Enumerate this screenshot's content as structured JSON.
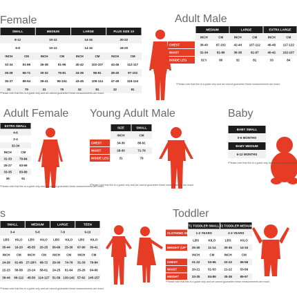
{
  "sections": [
    {
      "title": "Female",
      "note": "*Please note that this is a guide only and we cannot guarantee these measurements are exact.",
      "table": {
        "header": [
          "SMALL",
          "MEDIUM",
          "LARGE",
          "PLUS SIZE 1X"
        ],
        "rows": [
          {
            "cells": [
              "8-12",
              "10-12",
              "14-16",
              "20-22"
            ]
          },
          {
            "cells": [
              "6-8",
              "10-12",
              "14-16",
              "18-20"
            ]
          },
          {
            "cells": [
              "INCH",
              "CM",
              "INCH",
              "CM",
              "INCH",
              "CM",
              "INCH",
              "CM"
            ]
          },
          {
            "cells": [
              "32-34",
              "81-86",
              "36-38",
              "91-96",
              "40-42",
              "102-107",
              "44-46",
              "112-117"
            ]
          },
          {
            "cells": [
              "26-28",
              "66-71",
              "30-32",
              "76-81",
              "34-36",
              "86-91",
              "38-40",
              "97-102"
            ]
          },
          {
            "cells": [
              "35-37",
              "89-94",
              "39-41",
              "99-104",
              "43-45",
              "109-114",
              "47-49",
              "119-124"
            ]
          },
          {
            "cells": [
              "31",
              "79",
              "31",
              "79",
              "32",
              "81",
              "32",
              "81"
            ]
          }
        ]
      }
    },
    {
      "title": "Adult Male",
      "note": "*Please note that this is a guide only and we cannot guarantee these measurements are exact.",
      "table": {
        "header": [
          "MEDIUM",
          "LARGE",
          "EXTRA LARGE"
        ],
        "rows": [
          {
            "cells": [
              "INCH",
              "CM",
              "INCH",
              "CM",
              "INCH",
              "CM"
            ]
          },
          {
            "label": "CHEST",
            "cells": [
              "38-40",
              "97-102",
              "42-44",
              "107-112",
              "46-48",
              "117-122"
            ]
          },
          {
            "label": "WAIST",
            "cells": [
              "32-34",
              "81-86",
              "36-38",
              "91-97",
              "40-42",
              "102-107"
            ]
          },
          {
            "label": "INSIDE LEG",
            "cells": [
              "31½",
              "80",
              "32",
              "81",
              "33",
              "84"
            ]
          }
        ]
      }
    },
    {
      "title": "Adult Female",
      "note": "*Please note that this is a guide only and we cannot guarantee these measurements are exact.",
      "table": {
        "header": [
          "EXTRA SMALL"
        ],
        "rows": [
          {
            "cells": [
              "4-6"
            ]
          },
          {
            "cells": [
              "2-4"
            ]
          },
          {
            "cells": [
              "32-34"
            ]
          },
          {
            "cells": [
              "INCH",
              "CM"
            ]
          },
          {
            "cells": [
              "31-33",
              "79-84"
            ]
          },
          {
            "cells": [
              "25-27",
              "63-69"
            ]
          },
          {
            "cells": [
              "33-35",
              "83-89"
            ]
          },
          {
            "cells": [
              "36",
              "91"
            ]
          }
        ]
      }
    },
    {
      "title": "Young Adult Male",
      "note": "*Please note that this is a guide only and we cannot guarantee these measurements are exact.",
      "table": {
        "header": [
          "SIZE",
          "SMALL"
        ],
        "rows": [
          {
            "cells": [
              "INCH",
              "CM"
            ]
          },
          {
            "label": "CHEST",
            "cells": [
              "34-36",
              "86-91"
            ]
          },
          {
            "label": "WAIST",
            "cells": [
              "28-30",
              "71-76"
            ]
          },
          {
            "label": "INSIDE LEG",
            "cells": [
              "31",
              "79"
            ]
          }
        ]
      }
    },
    {
      "title": "Baby",
      "note": "*Please note that this is a guide only and we cannot guarantee these measurements are exact.",
      "table": {
        "header": [
          "BABY SMALL"
        ],
        "rows": [
          {
            "cells": [
              "0-6 MONTHS"
            ]
          },
          {
            "head": "BABY MEDIUM"
          },
          {
            "cells": [
              "6-12 MONTHS"
            ]
          }
        ]
      }
    },
    {
      "title": "s",
      "note": "*Please note that this is a guide only and we cannot guarantee these measurements are exact.",
      "table": {
        "header": [
          "SMALL",
          "MEDIUM",
          "LARGE",
          "TEEN"
        ],
        "rows": [
          {
            "cells": [
              "3-4",
              "5-6",
              "7-8",
              "9-10"
            ]
          },
          {
            "cells": [
              "LBS",
              "KILO",
              "LBS",
              "KILO",
              "LBS",
              "KILO",
              "LBS",
              "KILO"
            ]
          },
          {
            "cells": [
              "35-44",
              "16-20",
              "45-55",
              "20-25",
              "56-66",
              "25-30",
              "67-90",
              "30-41"
            ]
          },
          {
            "cells": [
              "INCH",
              "CM",
              "INCH",
              "CM",
              "INCH",
              "CM",
              "INCH",
              "CM"
            ]
          },
          {
            "cells": [
              "24-26",
              "61-66",
              "27-28½",
              "68-72",
              "29-30",
              "74-76",
              "31-33",
              "79-84"
            ]
          },
          {
            "cells": [
              "22-23",
              "56-58",
              "23-24",
              "58-61",
              "24-25",
              "61-64",
              "25-26",
              "64-66"
            ]
          },
          {
            "cells": [
              "39-44",
              "99-112",
              "45-50",
              "114-127",
              "51-56",
              "130-142",
              "57-62",
              "145-157"
            ]
          }
        ]
      }
    },
    {
      "title": "Toddler",
      "note": "*Please note that this is a guide only and we cannot guarantee these measurements are exact.",
      "table": {
        "header": [
          "T1 TODDLER SMALL",
          "T2 TODDLER MEDIUM"
        ],
        "rows": [
          {
            "label": "CLOTHING SIZE",
            "cells": [
              "1-2 YEARS",
              "2-3 YEARS"
            ]
          },
          {
            "cells": [
              "LBS",
              "KILO",
              "LBS",
              "KILO"
            ]
          },
          {
            "label": "WEIGHT (UP TO)",
            "cells": [
              "25-30",
              "11-14",
              "30-35",
              "14-16"
            ]
          },
          {
            "cells": [
              "INCH",
              "CM",
              "INCH",
              "CM"
            ]
          },
          {
            "label": "CHEST",
            "cells": [
              "21-22",
              "53-56",
              "22-23",
              "56-58"
            ]
          },
          {
            "label": "WAIST",
            "cells": [
              "20-21",
              "51-53",
              "21-22",
              "53-56"
            ]
          },
          {
            "label": "HEIGHT",
            "cells": [
              "33-35",
              "84-89",
              "35-38",
              "89-97"
            ]
          }
        ]
      }
    }
  ]
}
